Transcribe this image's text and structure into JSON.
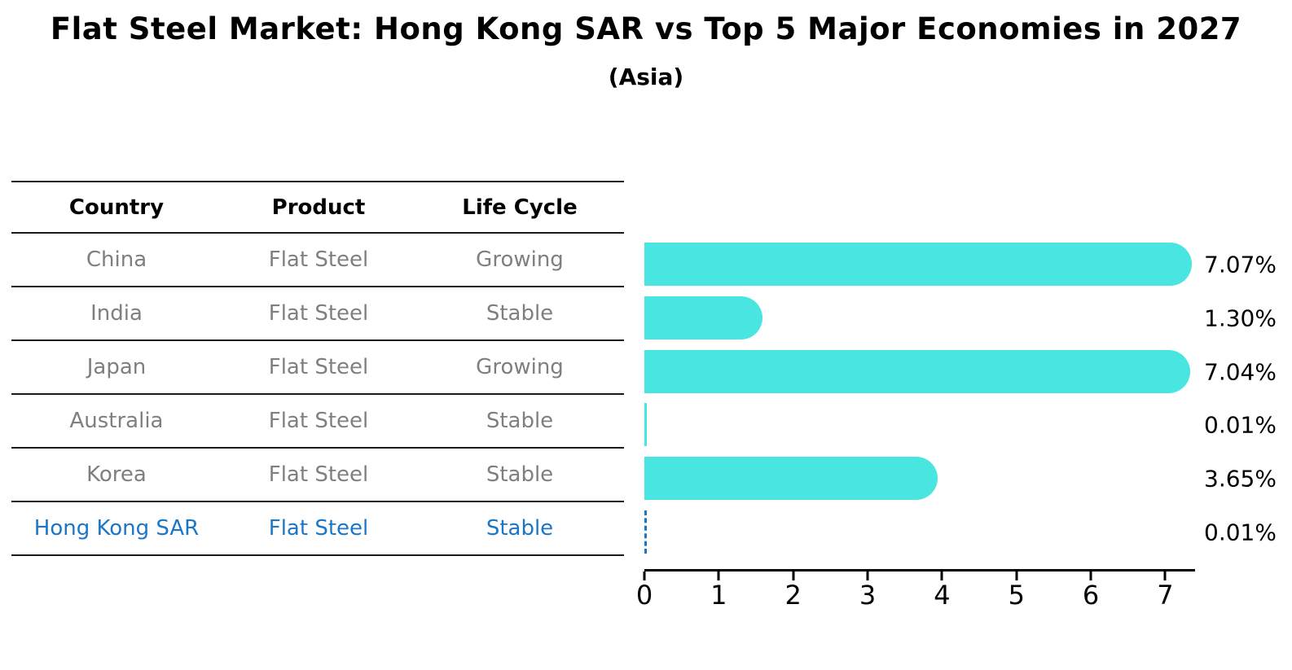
{
  "title": "Flat Steel Market: Hong Kong SAR vs Top 5 Major Economies in 2027",
  "subtitle": "(Asia)",
  "table": {
    "headers": [
      "Country",
      "Product",
      "Life Cycle"
    ],
    "rows": [
      {
        "country": "China",
        "product": "Flat Steel",
        "life_cycle": "Growing",
        "highlight": false
      },
      {
        "country": "India",
        "product": "Flat Steel",
        "life_cycle": "Stable",
        "highlight": false
      },
      {
        "country": "Japan",
        "product": "Flat Steel",
        "life_cycle": "Growing",
        "highlight": false
      },
      {
        "country": "Australia",
        "product": "Flat Steel",
        "life_cycle": "Stable",
        "highlight": false
      },
      {
        "country": "Korea",
        "product": "Flat Steel",
        "life_cycle": "Stable",
        "highlight": false
      },
      {
        "country": "Hong Kong SAR",
        "product": "Flat Steel",
        "life_cycle": "Stable",
        "highlight": true
      }
    ]
  },
  "chart_data": {
    "type": "bar",
    "orientation": "horizontal",
    "title": "Flat Steel Market: Hong Kong SAR vs Top 5 Major Economies in 2027 (Asia)",
    "categories": [
      "China",
      "India",
      "Japan",
      "Australia",
      "Korea",
      "Hong Kong SAR"
    ],
    "values": [
      7.07,
      1.3,
      7.04,
      0.01,
      3.65,
      0.01
    ],
    "value_labels": [
      "7.07%",
      "1.30%",
      "7.04%",
      "0.01%",
      "3.65%",
      "0.01%"
    ],
    "highlight_index": 5,
    "xlim": [
      0,
      7.4
    ],
    "x_ticks": [
      0,
      1,
      2,
      3,
      4,
      5,
      6,
      7
    ],
    "x_tick_labels": [
      "0",
      "1",
      "2",
      "3",
      "4",
      "5",
      "6",
      "7"
    ],
    "grid": false,
    "legend": null,
    "bar_color": "#48e5e1",
    "highlight_color": "#1c76c6",
    "label_color": "#000000",
    "row_text_color": "#7f7f7f"
  }
}
